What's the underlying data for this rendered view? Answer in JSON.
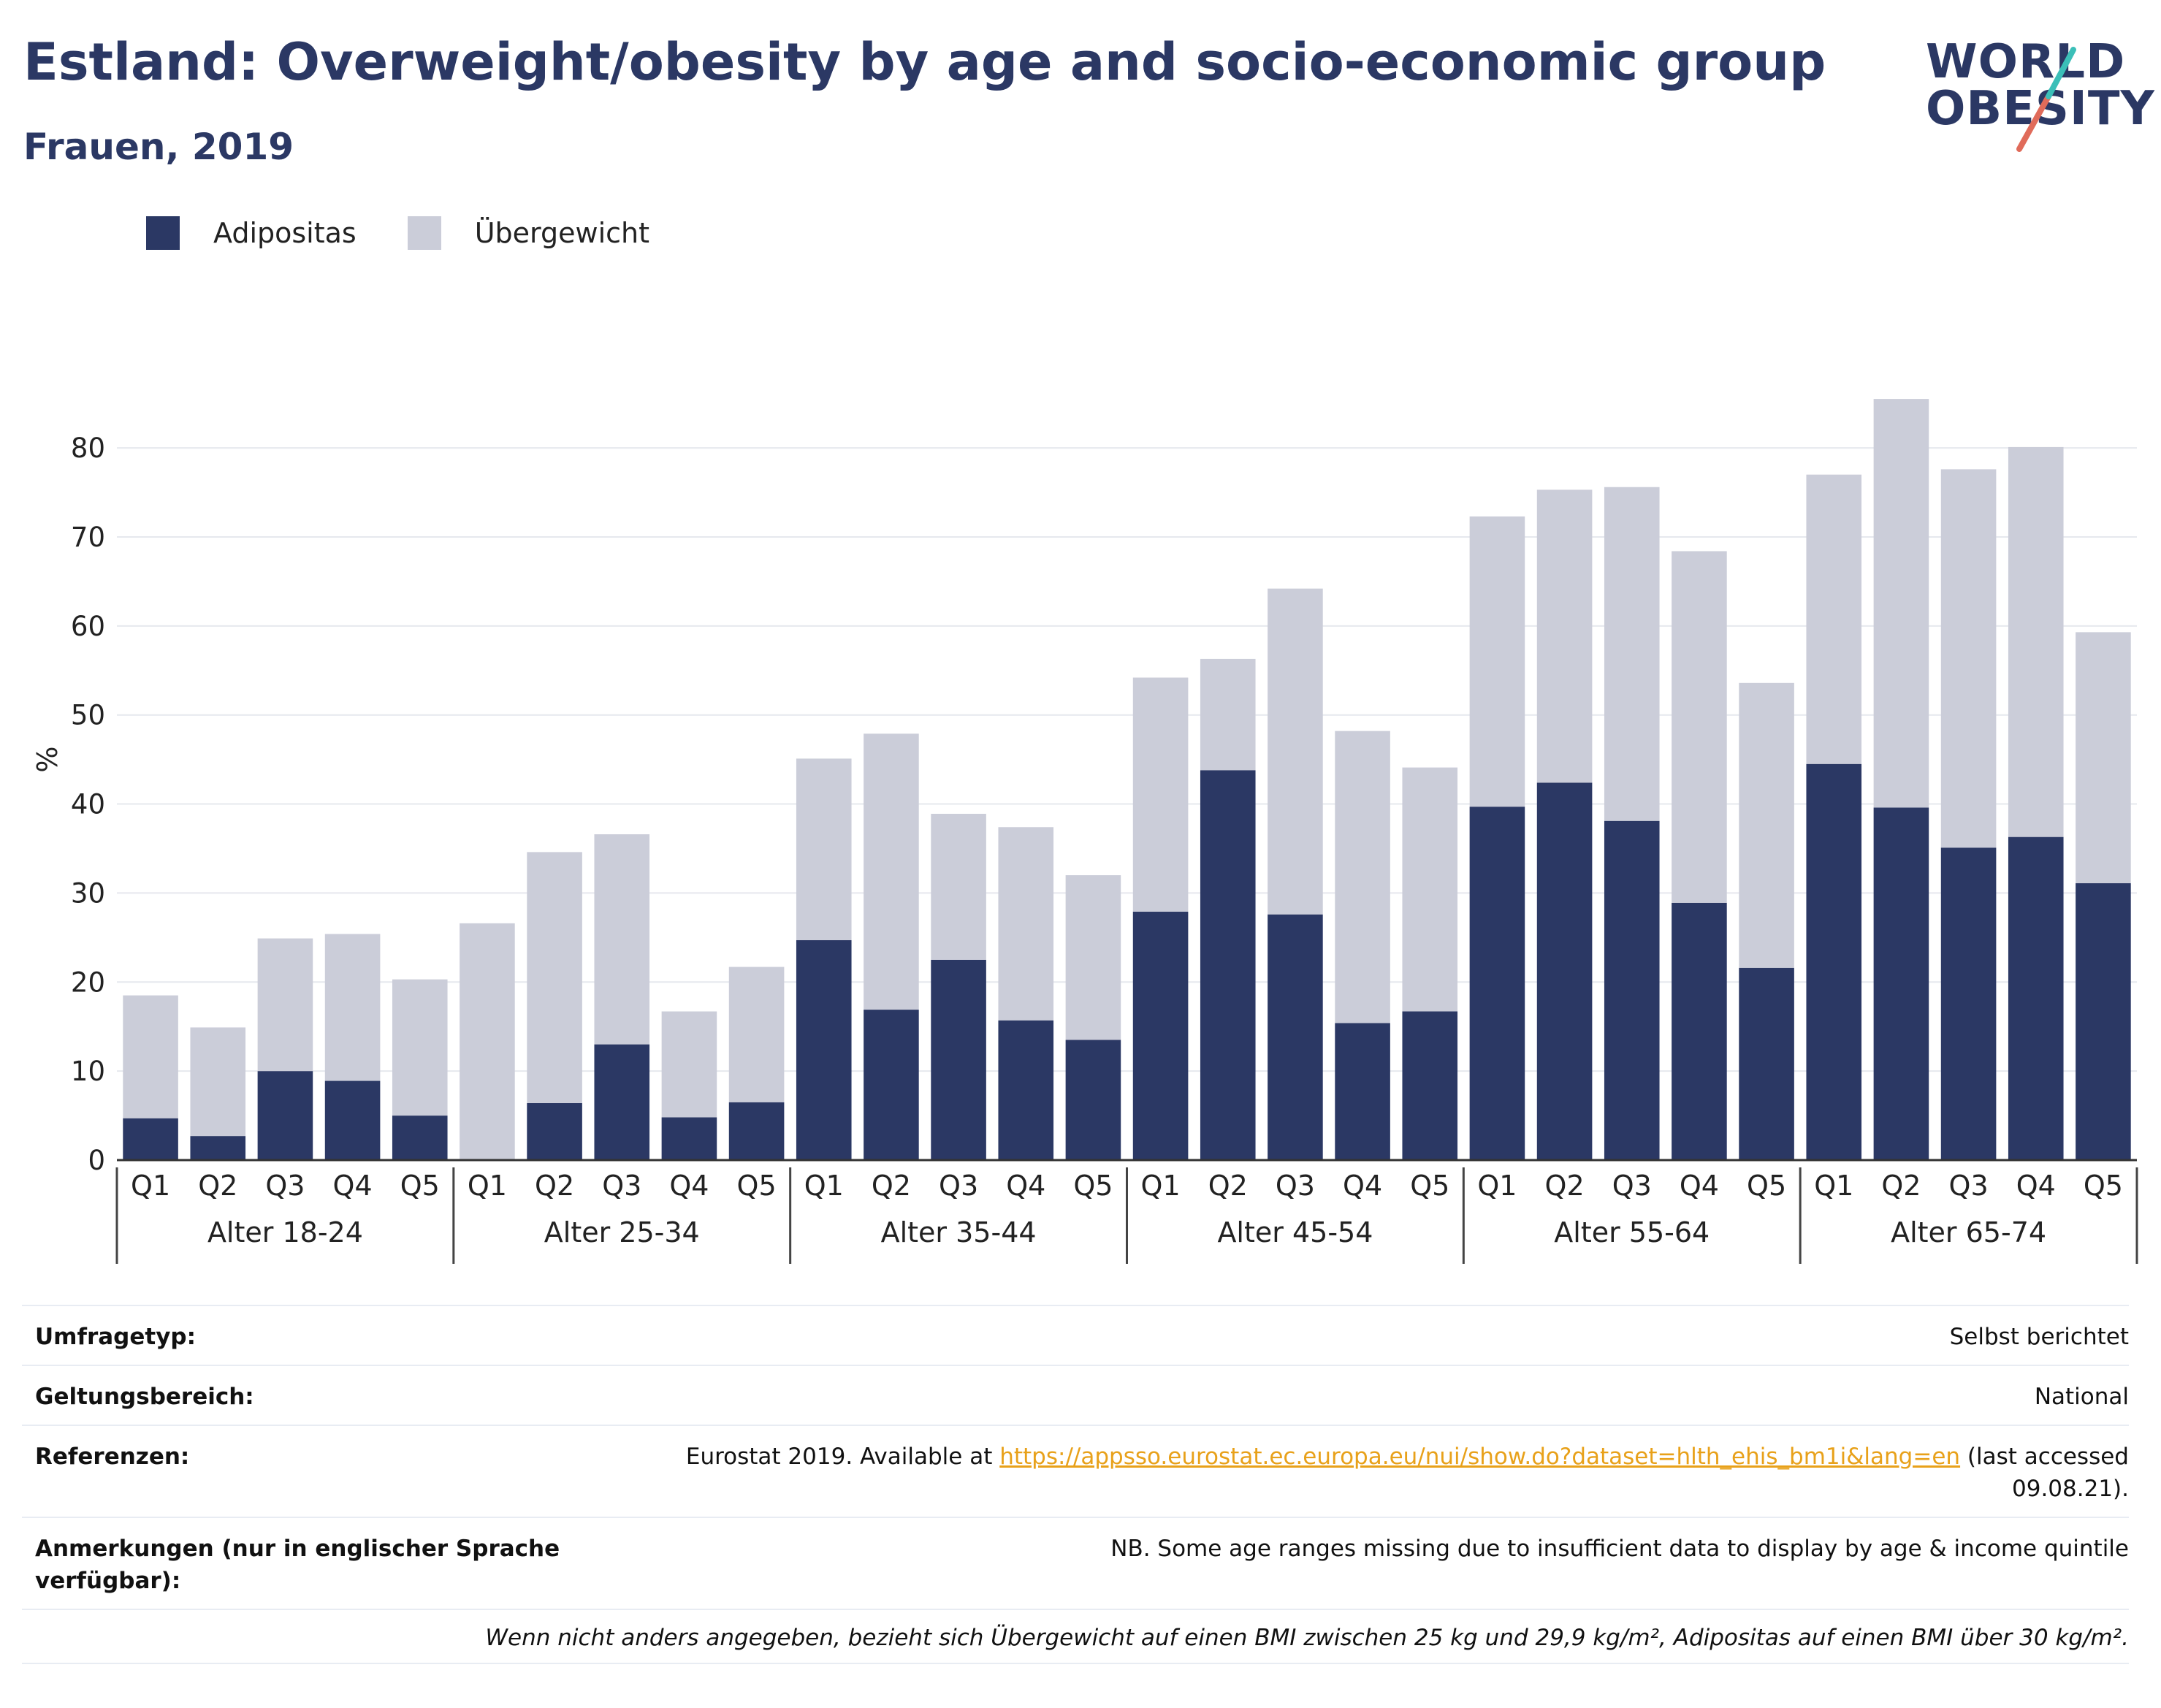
{
  "header": {
    "title": "Estland: Overweight/obesity by age and socio-economic group",
    "subtitle": "Frauen, 2019",
    "logo_line1": "WORLD",
    "logo_line2": "OBESITY"
  },
  "colors": {
    "obesity": "#2b3864",
    "overweight": "#cbcdd9",
    "accent_teal": "#3bbfb8",
    "accent_coral": "#e06b5a",
    "link": "#e8a11a"
  },
  "legend": [
    {
      "label": "Adipositas",
      "color": "#2b3864"
    },
    {
      "label": "Übergewicht",
      "color": "#cbcdd9"
    }
  ],
  "chart_data": {
    "type": "bar",
    "stacked": true,
    "ylabel": "%",
    "ylim": [
      0,
      86
    ],
    "yticks": [
      0,
      10,
      20,
      30,
      40,
      50,
      60,
      70,
      80
    ],
    "grid": true,
    "groups": [
      "Alter 18-24",
      "Alter 25-34",
      "Alter 35-44",
      "Alter 45-54",
      "Alter 55-64",
      "Alter 65-74"
    ],
    "categories": [
      "Q1",
      "Q2",
      "Q3",
      "Q4",
      "Q5"
    ],
    "series": [
      {
        "name": "Adipositas",
        "values": [
          [
            4.7,
            2.7,
            10.0,
            8.9,
            5.0
          ],
          [
            0.0,
            6.4,
            13.0,
            4.8,
            6.5
          ],
          [
            24.7,
            16.9,
            22.5,
            15.7,
            13.5
          ],
          [
            27.9,
            43.8,
            27.6,
            15.4,
            16.7
          ],
          [
            39.7,
            42.4,
            38.1,
            28.9,
            21.6
          ],
          [
            44.5,
            39.6,
            35.1,
            36.3,
            31.1
          ]
        ]
      },
      {
        "name": "Übergewicht",
        "values": [
          [
            13.8,
            12.2,
            14.9,
            16.5,
            15.3
          ],
          [
            26.6,
            28.2,
            23.6,
            11.9,
            15.2
          ],
          [
            20.4,
            31.0,
            16.4,
            21.7,
            18.5
          ],
          [
            26.3,
            12.5,
            36.6,
            32.8,
            27.4
          ],
          [
            32.6,
            32.9,
            37.5,
            39.5,
            32.0
          ],
          [
            32.5,
            45.9,
            42.5,
            43.8,
            28.2
          ]
        ]
      }
    ]
  },
  "info": {
    "rows": [
      {
        "key": "Umfragetyp:",
        "value": "Selbst berichtet"
      },
      {
        "key": "Geltungsbereich:",
        "value": "National"
      },
      {
        "key": "Referenzen:",
        "value_pre": "Eurostat 2019. Available at ",
        "link": "https://appsso.eurostat.ec.europa.eu/nui/show.do?dataset=hlth_ehis_bm1i&lang=en",
        "value_post": " (last accessed 09.08.21)."
      },
      {
        "key": "Anmerkungen (nur in englischer Sprache verfügbar):",
        "value": "NB. Some age ranges missing due to insufficient data to display by age & income quintile"
      }
    ],
    "footnote": "Wenn nicht anders angegeben, bezieht sich Übergewicht auf einen BMI zwischen 25 kg und 29,9 kg/m², Adipositas auf einen BMI über 30 kg/m²."
  }
}
